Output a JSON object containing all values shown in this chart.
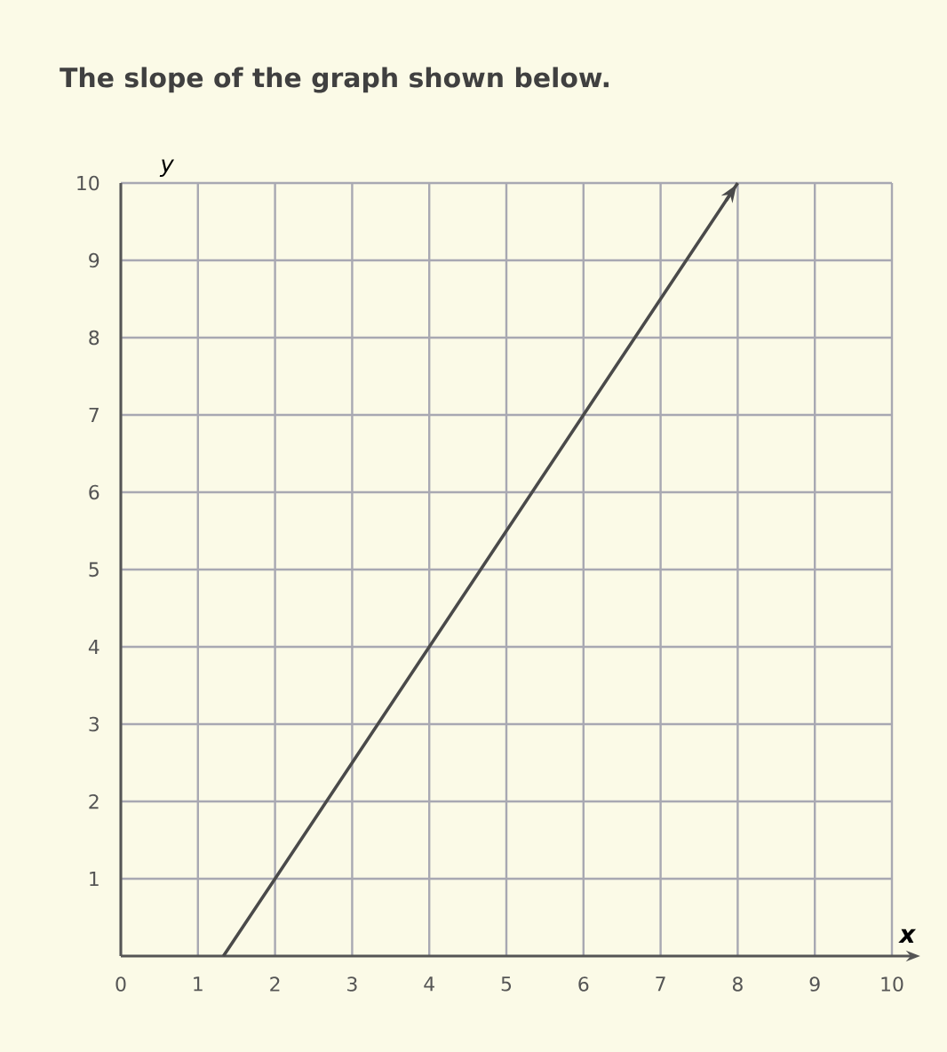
{
  "chart_data": {
    "type": "line",
    "title": "The slope of the graph shown below.",
    "xlabel": "x",
    "ylabel": "y",
    "x": [
      1.33,
      2,
      4,
      6,
      8
    ],
    "series": [
      {
        "color": "#4a4a4a",
        "values": [
          0,
          1,
          4,
          7,
          10
        ]
      }
    ],
    "xlim": [
      0,
      10
    ],
    "ylim": [
      0,
      10
    ],
    "xticks": [
      0,
      1,
      2,
      3,
      4,
      5,
      6,
      7,
      8,
      9,
      10
    ],
    "yticks": [
      1,
      2,
      3,
      4,
      5,
      6,
      7,
      8,
      9,
      10
    ],
    "grid": true,
    "marker": "none",
    "line_style": "solid"
  }
}
